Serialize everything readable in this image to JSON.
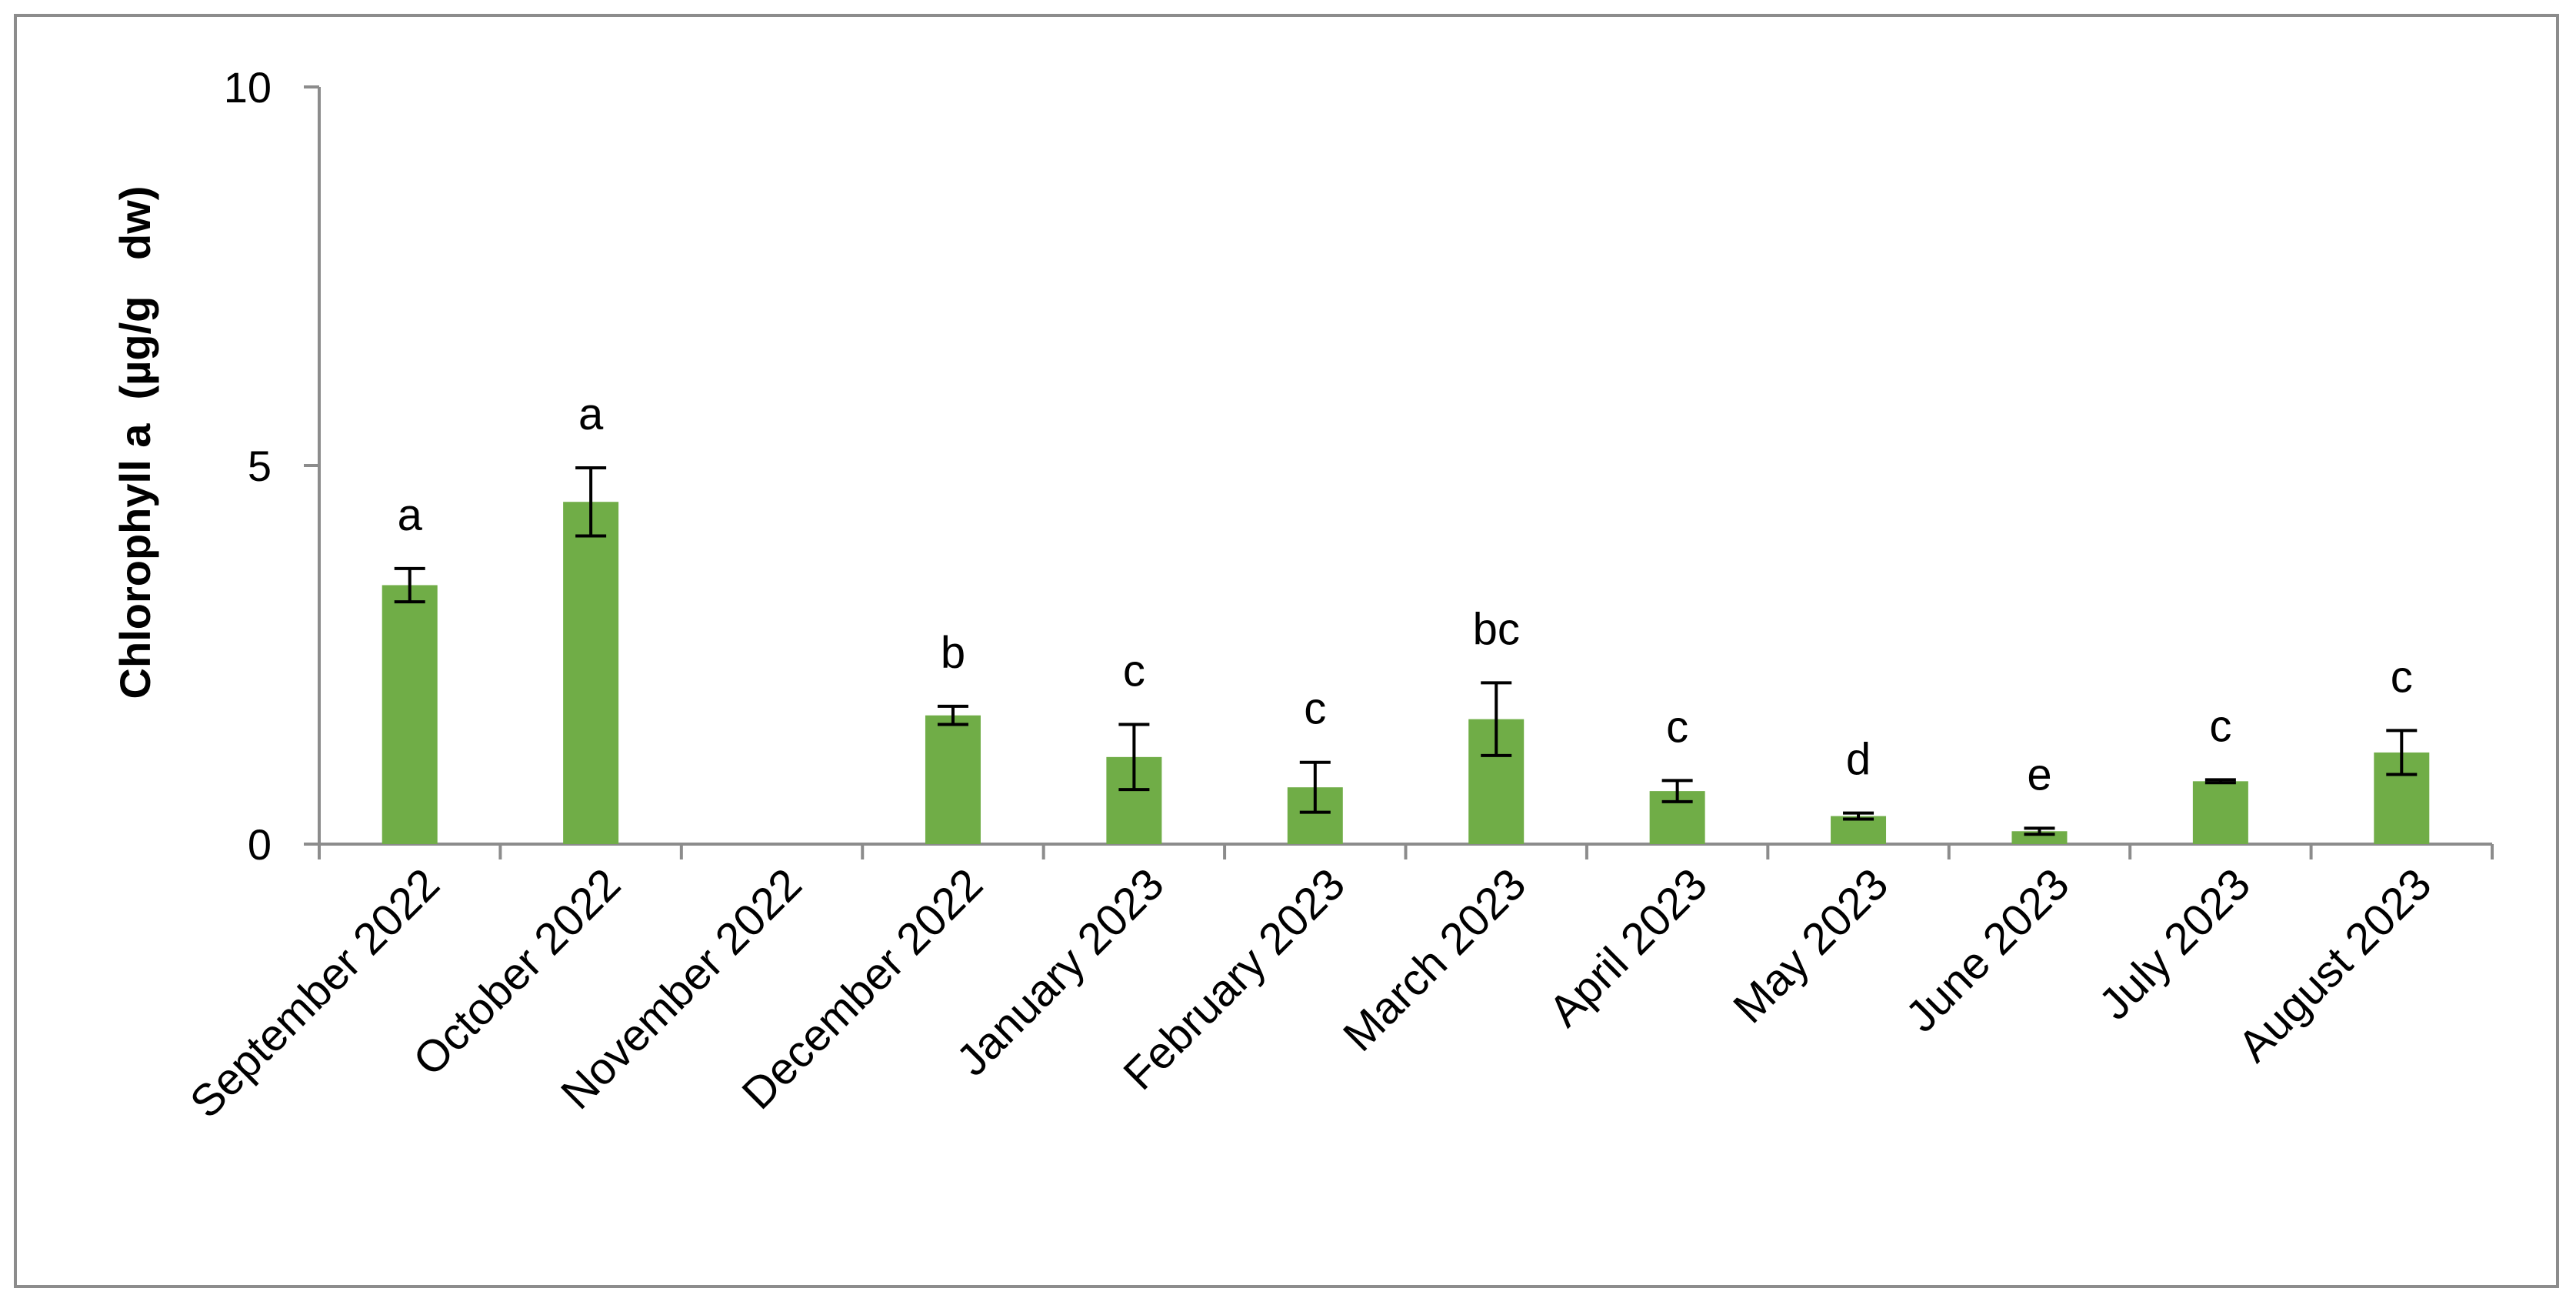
{
  "chart_data": {
    "type": "bar",
    "title": "",
    "xlabel": "",
    "ylabel": "Chlorophyll a  (µg/g   dw)",
    "ylim": [
      0,
      10
    ],
    "yticks": [
      "0",
      "5",
      "10"
    ],
    "grid": false,
    "legend": "none",
    "bar_color": "#70ad47",
    "categories": [
      "September 2022",
      "October 2022",
      "November 2022",
      "December 2022",
      "January 2023",
      "February 2023",
      "March 2023",
      "April 2023",
      "May 2023",
      "June 2023",
      "July 2023",
      "August 2023"
    ],
    "values": [
      3.42,
      4.52,
      null,
      1.7,
      1.15,
      0.75,
      1.65,
      0.7,
      0.37,
      0.17,
      0.83,
      1.21
    ],
    "errors": [
      0.22,
      0.45,
      null,
      0.12,
      0.43,
      0.33,
      0.48,
      0.14,
      0.04,
      0.04,
      0.02,
      0.29
    ],
    "significance_letters": [
      "a",
      "a",
      "",
      "b",
      "c",
      "c",
      "bc",
      "c",
      "d",
      "e",
      "c",
      "c"
    ]
  }
}
